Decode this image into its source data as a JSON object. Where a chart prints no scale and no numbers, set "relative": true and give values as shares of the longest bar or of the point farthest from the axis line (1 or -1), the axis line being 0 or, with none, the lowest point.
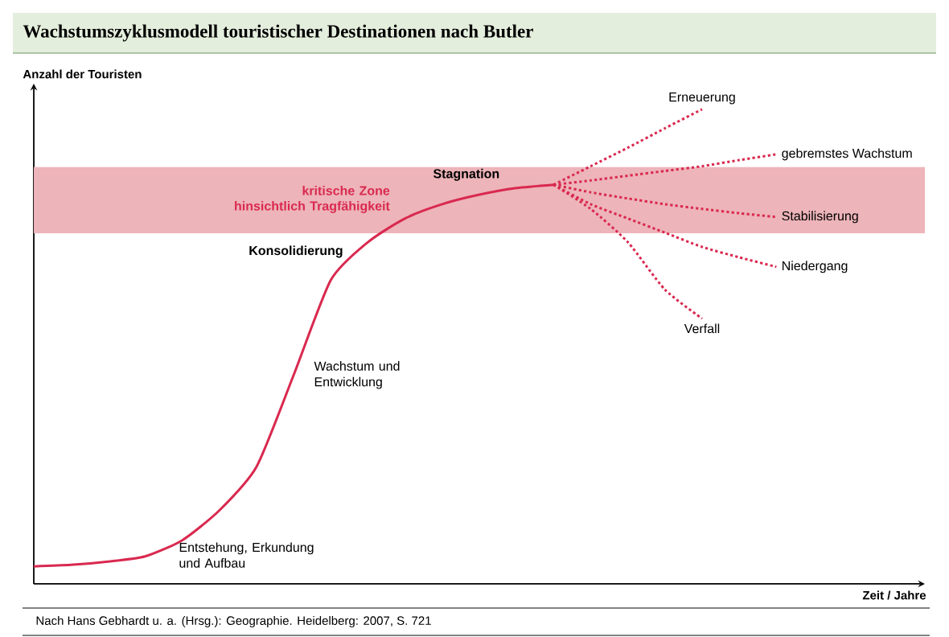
{
  "chart_data": {
    "type": "line",
    "relative": true,
    "title": "Wachstumszyklusmodell touristischer Destinationen nach Butler",
    "xlabel": "Zeit / Jahre",
    "ylabel": "Anzahl der Touristen",
    "categories": [
      null,
      null,
      null,
      null,
      null,
      null,
      null,
      null,
      null,
      null,
      null,
      null,
      null,
      null,
      null,
      null,
      null,
      null,
      null,
      null,
      null,
      null,
      null,
      null,
      null
    ],
    "series": [
      {
        "color": "#d9294f",
        "line_style": "solid",
        "values": [
          0.037,
          0.04,
          0.047,
          0.058,
          0.092,
          0.155,
          0.247,
          0.44,
          0.64,
          0.72,
          0.77,
          0.8,
          0.82,
          0.834,
          0.841,
          null,
          null,
          null,
          null,
          null,
          null,
          null,
          null,
          null,
          null
        ]
      },
      {
        "name": "Erneuerung",
        "color": "#d9294f",
        "line_style": "dotted",
        "values": [
          null,
          null,
          null,
          null,
          null,
          null,
          null,
          null,
          null,
          null,
          null,
          null,
          null,
          null,
          0.841,
          0.88,
          0.919,
          0.96,
          1.0,
          null,
          null,
          null,
          null,
          null,
          null
        ]
      },
      {
        "name": "gebremstes Wachstum",
        "color": "#d9294f",
        "line_style": "dotted",
        "values": [
          null,
          null,
          null,
          null,
          null,
          null,
          null,
          null,
          null,
          null,
          null,
          null,
          null,
          null,
          0.841,
          0.85,
          0.86,
          0.87,
          0.88,
          0.893,
          0.905,
          null,
          null,
          null,
          null
        ]
      },
      {
        "name": "Stabilisierung",
        "color": "#d9294f",
        "line_style": "dotted",
        "values": [
          null,
          null,
          null,
          null,
          null,
          null,
          null,
          null,
          null,
          null,
          null,
          null,
          null,
          null,
          0.841,
          0.825,
          0.812,
          0.8,
          0.79,
          0.781,
          0.773,
          null,
          null,
          null,
          null
        ]
      },
      {
        "name": "Niedergang",
        "color": "#d9294f",
        "line_style": "dotted",
        "values": [
          null,
          null,
          null,
          null,
          null,
          null,
          null,
          null,
          null,
          null,
          null,
          null,
          null,
          null,
          0.841,
          0.8,
          0.77,
          0.74,
          0.71,
          0.688,
          0.668,
          null,
          null,
          null,
          null
        ]
      },
      {
        "name": "Verfall",
        "color": "#d9294f",
        "line_style": "dotted",
        "values": [
          null,
          null,
          null,
          null,
          null,
          null,
          null,
          null,
          null,
          null,
          null,
          null,
          null,
          null,
          0.841,
          0.79,
          0.72,
          0.62,
          0.559,
          null,
          null,
          null,
          null,
          null,
          null
        ]
      }
    ],
    "bands": [
      {
        "axis": "y",
        "from": 0.739,
        "to": 0.878,
        "label": "kritische Zone hinsichtlich Tragfähigkeit",
        "color": "#edb4b9"
      }
    ],
    "annotations": [
      "Entstehung, Erkundung und Aufbau",
      "Wachstum und Entwicklung",
      "Konsolidierung",
      "Stagnation",
      "Nach Hans Gebhardt u. a. (Hrsg.): Geographie. Heidelberg: 2007, S. 721"
    ]
  }
}
